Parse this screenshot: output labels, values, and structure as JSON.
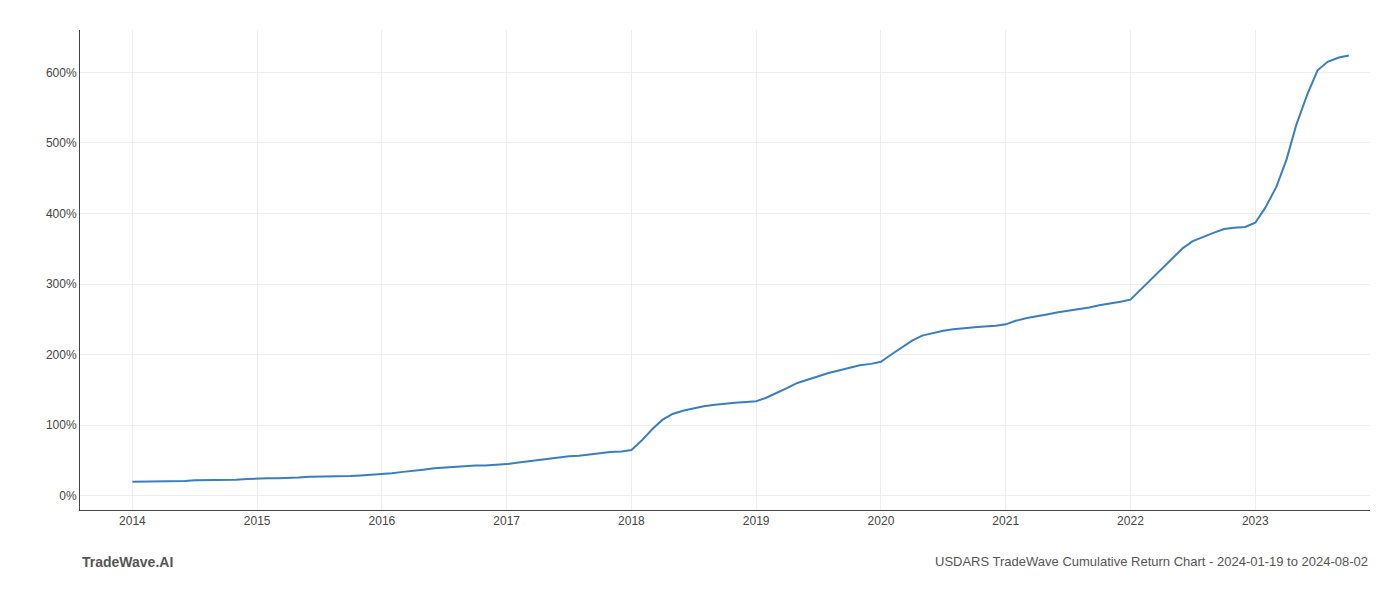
{
  "chart_data": {
    "type": "line",
    "title": "USDARS TradeWave Cumulative Return Chart - 2024-01-19 to 2024-08-02",
    "annotations": [
      "TradeWave.AI"
    ],
    "color": "#3a7ebf",
    "grid": true,
    "x": [
      2014.0,
      2014.08,
      2014.17,
      2014.25,
      2014.33,
      2014.42,
      2014.5,
      2014.58,
      2014.67,
      2014.75,
      2014.83,
      2014.92,
      2015.0,
      2015.08,
      2015.17,
      2015.25,
      2015.33,
      2015.42,
      2015.5,
      2015.58,
      2015.67,
      2015.75,
      2015.83,
      2015.92,
      2016.0,
      2016.08,
      2016.17,
      2016.25,
      2016.33,
      2016.42,
      2016.5,
      2016.58,
      2016.67,
      2016.75,
      2016.83,
      2016.92,
      2017.0,
      2017.08,
      2017.17,
      2017.25,
      2017.33,
      2017.42,
      2017.5,
      2017.58,
      2017.67,
      2017.75,
      2017.83,
      2017.92,
      2018.0,
      2018.08,
      2018.17,
      2018.25,
      2018.33,
      2018.42,
      2018.5,
      2018.58,
      2018.67,
      2018.75,
      2018.83,
      2018.92,
      2019.0,
      2019.08,
      2019.17,
      2019.25,
      2019.33,
      2019.42,
      2019.5,
      2019.58,
      2019.67,
      2019.75,
      2019.83,
      2019.92,
      2020.0,
      2020.08,
      2020.17,
      2020.25,
      2020.33,
      2020.42,
      2020.5,
      2020.58,
      2020.67,
      2020.75,
      2020.83,
      2020.92,
      2021.0,
      2021.08,
      2021.17,
      2021.25,
      2021.33,
      2021.42,
      2021.5,
      2021.58,
      2021.67,
      2021.75,
      2021.83,
      2021.92,
      2022.0,
      2022.08,
      2022.17,
      2022.25,
      2022.33,
      2022.42,
      2022.5,
      2022.58,
      2022.67,
      2022.75,
      2022.83,
      2022.92,
      2023.0,
      2023.08,
      2023.17,
      2023.25,
      2023.33,
      2023.42,
      2023.5,
      2023.58,
      2023.67,
      2023.75
    ],
    "values": [
      20,
      20,
      21,
      21,
      21,
      21,
      22,
      22,
      22,
      22,
      23,
      24,
      25,
      25,
      25,
      26,
      26,
      27,
      27,
      27,
      28,
      28,
      29,
      30,
      31,
      32,
      34,
      36,
      37,
      39,
      40,
      41,
      42,
      43,
      43,
      44,
      45,
      47,
      49,
      51,
      52,
      54,
      56,
      57,
      59,
      61,
      62,
      63,
      65,
      78,
      95,
      108,
      116,
      121,
      124,
      127,
      129,
      131,
      132,
      133,
      134,
      139,
      146,
      153,
      160,
      165,
      170,
      174,
      178,
      182,
      185,
      187,
      190,
      200,
      210,
      220,
      227,
      231,
      234,
      236,
      238,
      239,
      240,
      241,
      243,
      248,
      252,
      255,
      257,
      260,
      262,
      264,
      267,
      270,
      272,
      275,
      278,
      292,
      308,
      322,
      336,
      351,
      361,
      367,
      373,
      378,
      380,
      381,
      387,
      408,
      438,
      476,
      526,
      570,
      603,
      615,
      621,
      624
    ],
    "xlim": [
      2013.58,
      2023.92
    ],
    "xticks": [
      2014,
      2015,
      2016,
      2017,
      2018,
      2019,
      2020,
      2021,
      2022,
      2023
    ],
    "ylim": [
      -20,
      660
    ],
    "yticks": [
      {
        "value": 0,
        "label": "0%"
      },
      {
        "value": 100,
        "label": "100%"
      },
      {
        "value": 200,
        "label": "200%"
      },
      {
        "value": 300,
        "label": "300%"
      },
      {
        "value": 400,
        "label": "400%"
      },
      {
        "value": 500,
        "label": "500%"
      },
      {
        "value": 600,
        "label": "600%"
      }
    ]
  }
}
